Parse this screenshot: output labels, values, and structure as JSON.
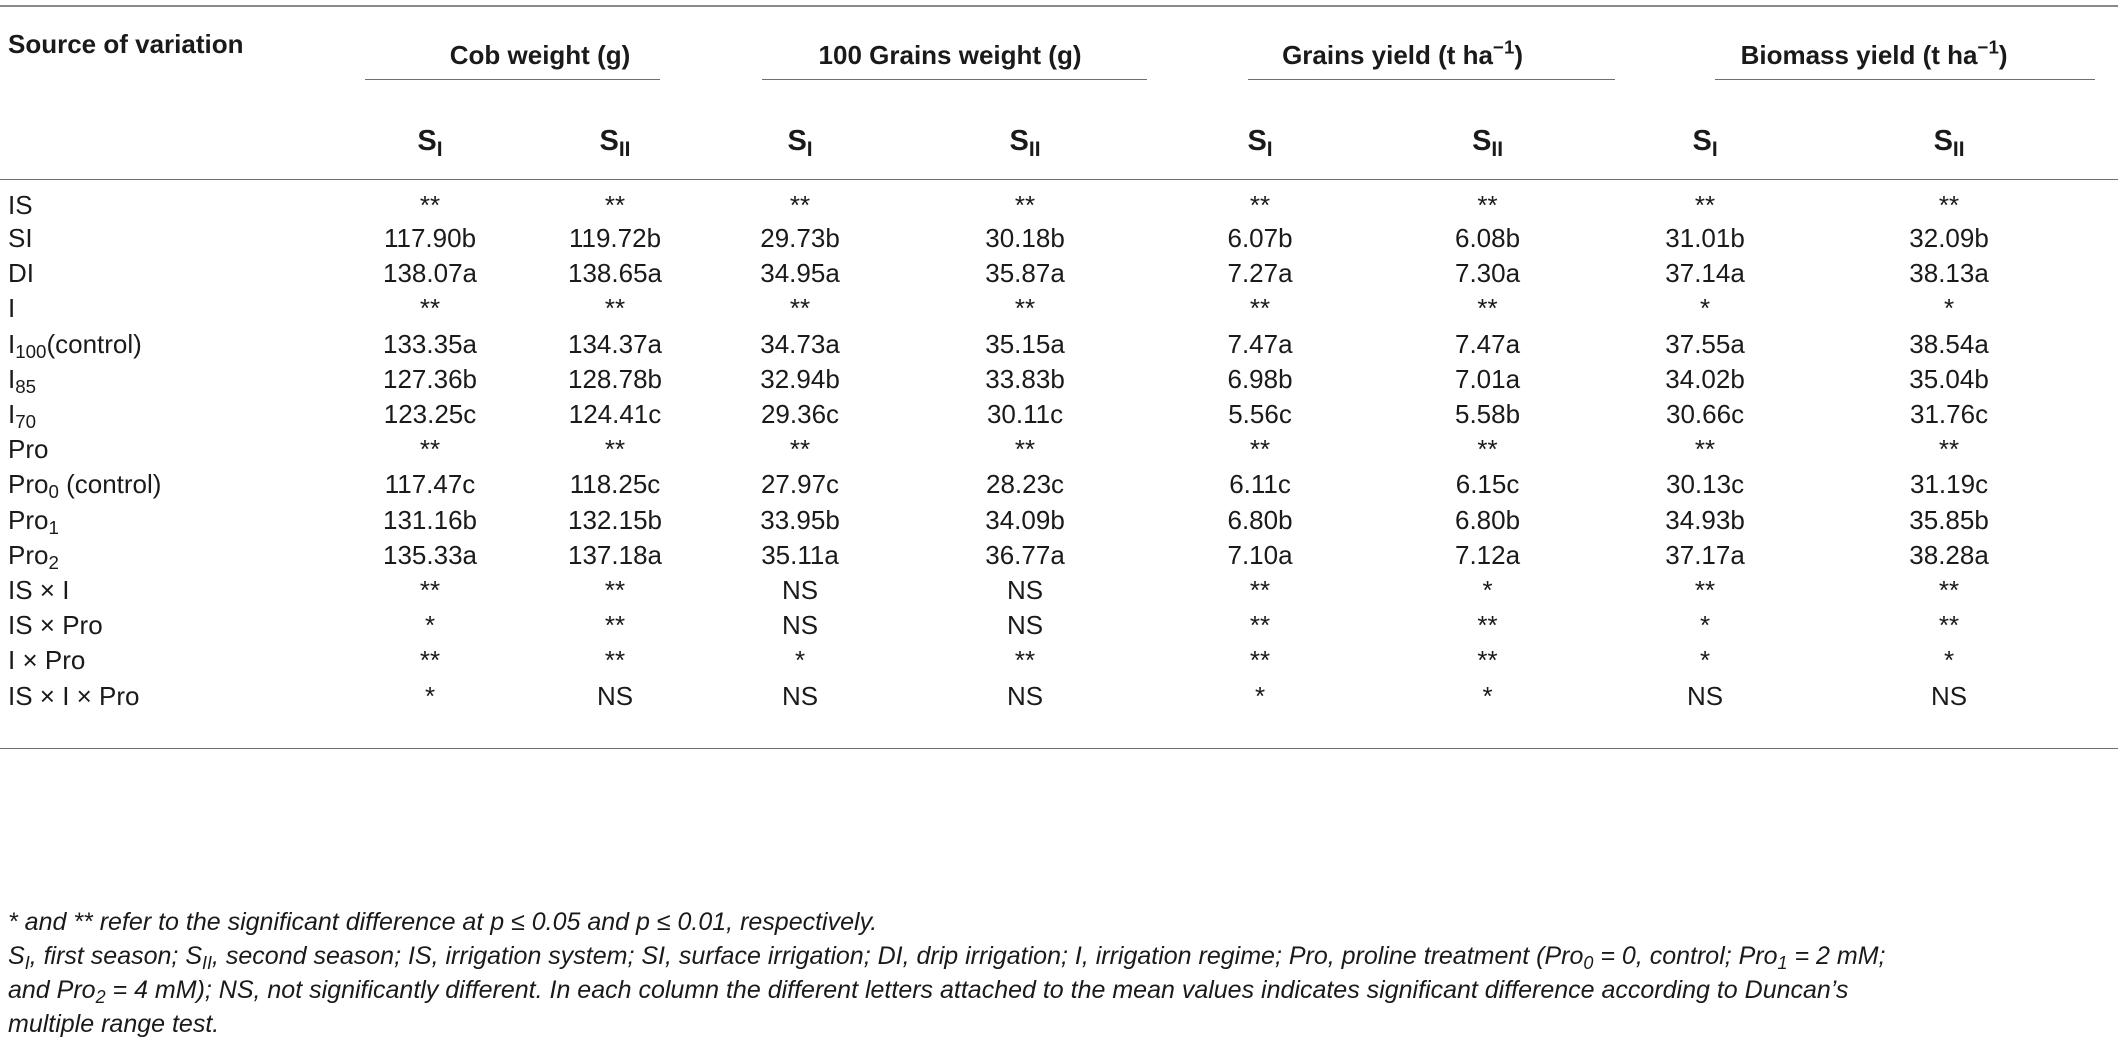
{
  "table": {
    "source_header": "Source of variation",
    "groups": [
      {
        "label": "Cob weight (g)",
        "unit_sup": ""
      },
      {
        "label": "100 Grains weight (g)",
        "unit_sup": ""
      },
      {
        "label": "Grains yield (t ha",
        "unit_sup": "−1",
        "close": ")"
      },
      {
        "label": "Biomass yield (t ha",
        "unit_sup": "−1",
        "close": ")"
      }
    ],
    "season_base": "S",
    "season1_sub": "I",
    "season2_sub": "II",
    "rows": [
      {
        "base": "IS",
        "sub": "",
        "tail": "",
        "values": [
          "**",
          "**",
          "**",
          "**",
          "**",
          "**",
          "**",
          "**"
        ]
      },
      {
        "base": "SI",
        "sub": "",
        "tail": "",
        "values": [
          "117.90b",
          "119.72b",
          "29.73b",
          "30.18b",
          "6.07b",
          "6.08b",
          "31.01b",
          "32.09b"
        ]
      },
      {
        "base": "DI",
        "sub": "",
        "tail": "",
        "values": [
          "138.07a",
          "138.65a",
          "34.95a",
          "35.87a",
          "7.27a",
          "7.30a",
          "37.14a",
          "38.13a"
        ]
      },
      {
        "base": "I",
        "sub": "",
        "tail": "",
        "values": [
          "**",
          "**",
          "**",
          "**",
          "**",
          "**",
          "*",
          "*"
        ]
      },
      {
        "base": "I",
        "sub": "100",
        "tail": "(control)",
        "values": [
          "133.35a",
          "134.37a",
          "34.73a",
          "35.15a",
          "7.47a",
          "7.47a",
          "37.55a",
          "38.54a"
        ]
      },
      {
        "base": "I",
        "sub": "85",
        "tail": "",
        "values": [
          "127.36b",
          "128.78b",
          "32.94b",
          "33.83b",
          "6.98b",
          "7.01a",
          "34.02b",
          "35.04b"
        ]
      },
      {
        "base": "I",
        "sub": "70",
        "tail": "",
        "values": [
          "123.25c",
          "124.41c",
          "29.36c",
          "30.11c",
          "5.56c",
          "5.58b",
          "30.66c",
          "31.76c"
        ]
      },
      {
        "base": "Pro",
        "sub": "",
        "tail": "",
        "values": [
          "**",
          "**",
          "**",
          "**",
          "**",
          "**",
          "**",
          "**"
        ]
      },
      {
        "base": "Pro",
        "sub": "0",
        "tail": " (control)",
        "values": [
          "117.47c",
          "118.25c",
          "27.97c",
          "28.23c",
          "6.11c",
          "6.15c",
          "30.13c",
          "31.19c"
        ]
      },
      {
        "base": "Pro",
        "sub": "1",
        "tail": "",
        "values": [
          "131.16b",
          "132.15b",
          "33.95b",
          "34.09b",
          "6.80b",
          "6.80b",
          "34.93b",
          "35.85b"
        ]
      },
      {
        "base": "Pro",
        "sub": "2",
        "tail": "",
        "values": [
          "135.33a",
          "137.18a",
          "35.11a",
          "36.77a",
          "7.10a",
          "7.12a",
          "37.17a",
          "38.28a"
        ]
      },
      {
        "base": "IS × I",
        "sub": "",
        "tail": "",
        "values": [
          "**",
          "**",
          "NS",
          "NS",
          "**",
          "*",
          "**",
          "**"
        ]
      },
      {
        "base": "IS × Pro",
        "sub": "",
        "tail": "",
        "values": [
          "*",
          "**",
          "NS",
          "NS",
          "**",
          "**",
          "*",
          "**"
        ]
      },
      {
        "base": "I × Pro",
        "sub": "",
        "tail": "",
        "values": [
          "**",
          "**",
          "*",
          "**",
          "**",
          "**",
          "*",
          "*"
        ]
      },
      {
        "base": "IS × I × Pro",
        "sub": "",
        "tail": "",
        "values": [
          "*",
          "NS",
          "NS",
          "NS",
          "*",
          "*",
          "NS",
          "NS"
        ]
      }
    ]
  },
  "notes": {
    "line1": "* and ** refer to the significant difference at p ≤ 0.05 and p ≤ 0.01, respectively.",
    "n2_s": "S",
    "n2_sub1": "I",
    "n2_a": ", first season; S",
    "n2_sub2": "II",
    "n2_b": ", second season; IS, irrigation system; SI, surface irrigation; DI, drip irrigation; I, irrigation regime; Pro, proline treatment (Pro",
    "n2_sub3": "0",
    "n2_c": " = 0, control; Pro",
    "n2_sub4": "1",
    "n2_d": " = 2 mM;",
    "n3_a": "and Pro",
    "n3_sub": "2",
    "n3_b": " = 4 mM); NS, not significantly different. In each column the different letters attached to the mean values indicates significant difference according to Duncan’s",
    "n4": "multiple range test."
  }
}
